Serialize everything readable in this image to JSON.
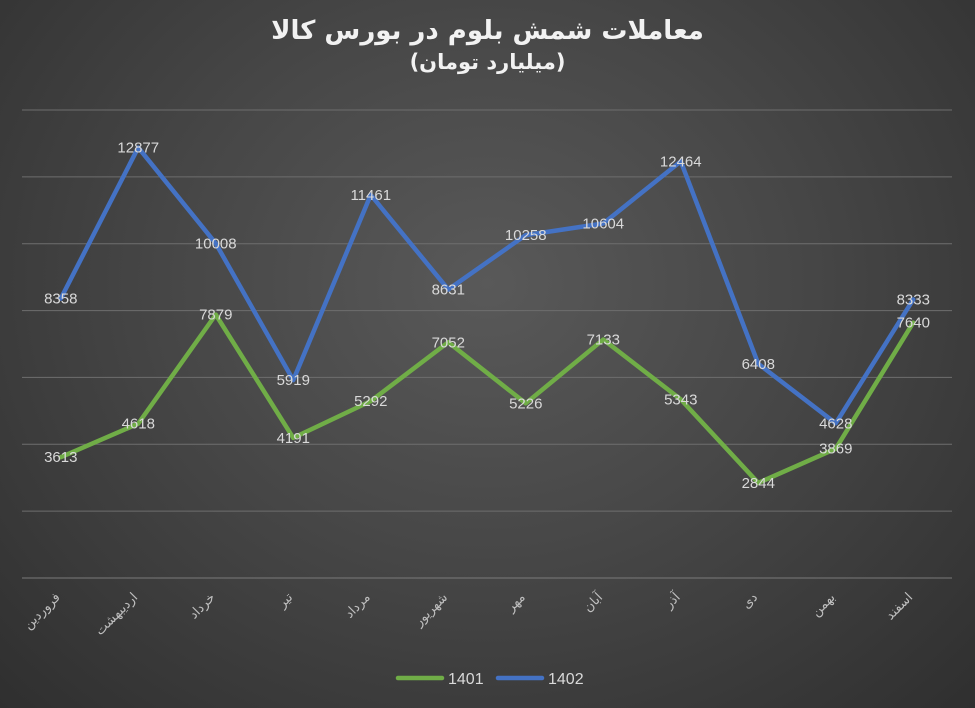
{
  "chart_data": {
    "type": "line",
    "title": "معاملات شمش بلوم در بورس کالا",
    "subtitle": "(میلیارد تومان)",
    "categories": [
      "فروردین",
      "اردیبهشت",
      "خرداد",
      "تیر",
      "مرداد",
      "شهریور",
      "مهر",
      "آبان",
      "آذر",
      "دی",
      "بهمن",
      "اسفند"
    ],
    "series": [
      {
        "name": "1401",
        "color": "#70ad47",
        "values": [
          3613,
          4618,
          7879,
          4191,
          5292,
          7052,
          5226,
          7133,
          5343,
          2844,
          3869,
          7640
        ]
      },
      {
        "name": "1402",
        "color": "#4472c4",
        "values": [
          8358,
          12877,
          10008,
          5919,
          11461,
          8631,
          10258,
          10604,
          12464,
          6408,
          4628,
          8333
        ]
      }
    ],
    "ylim": [
      0,
      14000
    ],
    "grid": true,
    "legend": "bottom",
    "xlabel": "",
    "ylabel": ""
  }
}
